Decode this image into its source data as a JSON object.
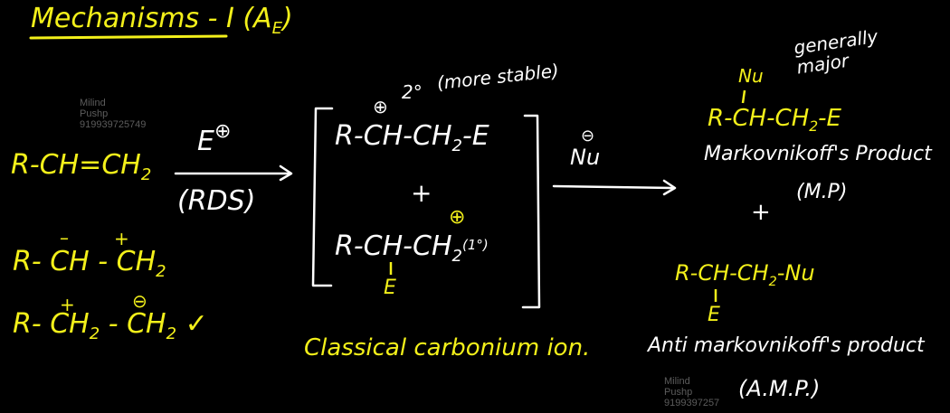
{
  "title": {
    "text": "Mechanisms - I (A",
    "sub": "E",
    "close": ")"
  },
  "reactant": {
    "alkene": "R-CH=CH",
    "alkene_sub": "2",
    "resonance1": {
      "r": "R-",
      "c1": "CH",
      "dash": "-",
      "c2": "CH",
      "c2_sub": "2",
      "c1_charge": "–",
      "c2_charge": "+"
    },
    "resonance2": {
      "r": "R-",
      "c1": "CH",
      "c1_sub": "2",
      "dash": "-",
      "c2": "CH",
      "c2_sub": "2",
      "c1_charge": "+",
      "c2_charge": "⊖",
      "check": "✓"
    }
  },
  "step1": {
    "reagent": "E",
    "reagent_charge": "⊕",
    "label": "(RDS)"
  },
  "intermediate": {
    "top_charge": "⊕",
    "degree": "2°",
    "note": "(more stable)",
    "top": "R-CH-CH",
    "top_sub": "2",
    "top_end": "-E",
    "plus": "+",
    "bottom_charge": "⊕",
    "bottom": "R-CH-CH",
    "bottom_sub": "2",
    "bottom_degree": "(1°)",
    "bottom_substituent": "E",
    "caption": "Classical carbonium ion."
  },
  "step2": {
    "reagent": "Nu",
    "reagent_charge": "⊖"
  },
  "products": {
    "mp_nu": "Nu",
    "mp_note": "generally major",
    "mp_formula": "R-CH-CH",
    "mp_formula_sub": "2",
    "mp_formula_end": "-E",
    "mp_name": "Markovnikoff's Product",
    "mp_abbr": "(M.P)",
    "plus": "+",
    "amp_formula": "R-CH-CH",
    "amp_formula_sub": "2",
    "amp_formula_end": "-Nu",
    "amp_substituent": "E",
    "amp_name": "Anti markovnikoff's product",
    "amp_abbr": "(A.M.P.)"
  },
  "watermark": {
    "line1": "Milind",
    "line2": "Pushp",
    "line3": "9199397257",
    "line3_full": "919939725749"
  }
}
